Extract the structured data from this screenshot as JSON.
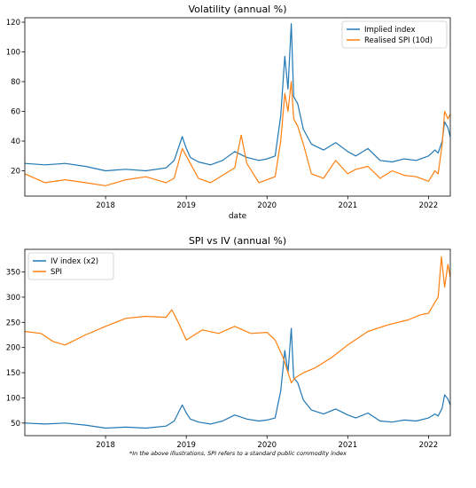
{
  "footnote": "*In the above illustrations, SPI refers to a standard public commodity index",
  "chart_data": [
    {
      "type": "line",
      "title": "Volatility (annual %)",
      "xlabel": "date",
      "ylabel": "",
      "xlim": [
        2017.0,
        2022.27
      ],
      "ylim": [
        3,
        123
      ],
      "xticks": [
        2018,
        2019,
        2020,
        2021,
        2022
      ],
      "xtick_labels": [
        "2018",
        "2019",
        "2020",
        "2021",
        "2022"
      ],
      "yticks": [
        20,
        40,
        60,
        80,
        100,
        120
      ],
      "ytick_labels": [
        "20",
        "40",
        "60",
        "80",
        "100",
        "120"
      ],
      "legend_position": "top-right",
      "grid": false,
      "series": [
        {
          "name": "Implied index",
          "color": "#1f77b4",
          "x": [
            2017.0,
            2017.25,
            2017.5,
            2017.75,
            2018.0,
            2018.25,
            2018.5,
            2018.75,
            2018.85,
            2018.95,
            2019.0,
            2019.05,
            2019.15,
            2019.3,
            2019.45,
            2019.6,
            2019.75,
            2019.9,
            2020.0,
            2020.1,
            2020.17,
            2020.22,
            2020.26,
            2020.3,
            2020.33,
            2020.38,
            2020.45,
            2020.55,
            2020.7,
            2020.85,
            2021.0,
            2021.1,
            2021.25,
            2021.4,
            2021.55,
            2021.7,
            2021.85,
            2022.0,
            2022.08,
            2022.12,
            2022.17,
            2022.2,
            2022.24,
            2022.27
          ],
          "values": [
            25,
            24,
            25,
            23,
            20,
            21,
            20,
            22,
            27,
            43,
            35,
            29,
            26,
            24,
            27,
            33,
            29,
            27,
            28,
            30,
            57,
            97,
            75,
            119,
            70,
            65,
            48,
            38,
            34,
            39,
            33,
            30,
            35,
            27,
            26,
            28,
            27,
            30,
            34,
            32,
            40,
            53,
            49,
            43
          ]
        },
        {
          "name": "Realised SPI (10d)",
          "color": "#ff7f0e",
          "x": [
            2017.0,
            2017.25,
            2017.5,
            2017.75,
            2018.0,
            2018.25,
            2018.5,
            2018.75,
            2018.85,
            2018.95,
            2019.0,
            2019.05,
            2019.15,
            2019.3,
            2019.45,
            2019.6,
            2019.68,
            2019.75,
            2019.9,
            2020.0,
            2020.1,
            2020.17,
            2020.22,
            2020.26,
            2020.3,
            2020.33,
            2020.38,
            2020.45,
            2020.55,
            2020.7,
            2020.85,
            2021.0,
            2021.1,
            2021.25,
            2021.4,
            2021.55,
            2021.7,
            2021.85,
            2022.0,
            2022.08,
            2022.12,
            2022.17,
            2022.2,
            2022.24,
            2022.27
          ],
          "values": [
            18,
            12,
            14,
            12,
            10,
            14,
            16,
            12,
            15,
            35,
            30,
            25,
            15,
            12,
            17,
            22,
            44,
            25,
            12,
            14,
            16,
            40,
            72,
            60,
            80,
            55,
            50,
            38,
            18,
            15,
            27,
            18,
            21,
            23,
            15,
            20,
            17,
            16,
            13,
            20,
            18,
            38,
            60,
            55,
            58
          ]
        }
      ]
    },
    {
      "type": "line",
      "title": "SPI vs IV (annual %)",
      "xlabel": "",
      "ylabel": "",
      "xlim": [
        2017.0,
        2022.27
      ],
      "ylim": [
        25,
        395
      ],
      "xticks": [
        2018,
        2019,
        2020,
        2021,
        2022
      ],
      "xtick_labels": [
        "2018",
        "2019",
        "2020",
        "2021",
        "2022"
      ],
      "yticks": [
        50,
        100,
        150,
        200,
        250,
        300,
        350
      ],
      "ytick_labels": [
        "50",
        "100",
        "150",
        "200",
        "250",
        "300",
        "350"
      ],
      "legend_position": "top-left",
      "grid": false,
      "series": [
        {
          "name": "IV index  (x2)",
          "color": "#1f77b4",
          "x": [
            2017.0,
            2017.25,
            2017.5,
            2017.75,
            2018.0,
            2018.25,
            2018.5,
            2018.75,
            2018.85,
            2018.95,
            2019.0,
            2019.05,
            2019.15,
            2019.3,
            2019.45,
            2019.6,
            2019.75,
            2019.9,
            2020.0,
            2020.1,
            2020.17,
            2020.22,
            2020.26,
            2020.3,
            2020.33,
            2020.38,
            2020.45,
            2020.55,
            2020.7,
            2020.85,
            2021.0,
            2021.1,
            2021.25,
            2021.4,
            2021.55,
            2021.7,
            2021.85,
            2022.0,
            2022.08,
            2022.12,
            2022.17,
            2022.2,
            2022.24,
            2022.27
          ],
          "values": [
            50,
            48,
            50,
            46,
            40,
            42,
            40,
            44,
            54,
            86,
            70,
            58,
            52,
            48,
            54,
            66,
            58,
            54,
            56,
            60,
            114,
            194,
            150,
            238,
            140,
            130,
            96,
            76,
            68,
            78,
            66,
            60,
            70,
            54,
            52,
            56,
            54,
            60,
            68,
            64,
            80,
            106,
            98,
            86
          ]
        },
        {
          "name": "SPI",
          "color": "#ff7f0e",
          "x": [
            2017.0,
            2017.2,
            2017.35,
            2017.5,
            2017.75,
            2018.0,
            2018.25,
            2018.5,
            2018.75,
            2018.82,
            2018.9,
            2019.0,
            2019.2,
            2019.4,
            2019.6,
            2019.8,
            2020.0,
            2020.1,
            2020.2,
            2020.3,
            2020.35,
            2020.45,
            2020.6,
            2020.8,
            2021.0,
            2021.25,
            2021.5,
            2021.75,
            2021.9,
            2022.0,
            2022.08,
            2022.12,
            2022.16,
            2022.2,
            2022.24,
            2022.27
          ],
          "values": [
            232,
            228,
            212,
            205,
            225,
            242,
            258,
            262,
            260,
            275,
            250,
            215,
            235,
            228,
            242,
            228,
            230,
            215,
            180,
            130,
            140,
            150,
            160,
            180,
            205,
            232,
            245,
            255,
            265,
            268,
            290,
            300,
            380,
            320,
            365,
            340
          ]
        }
      ]
    }
  ]
}
